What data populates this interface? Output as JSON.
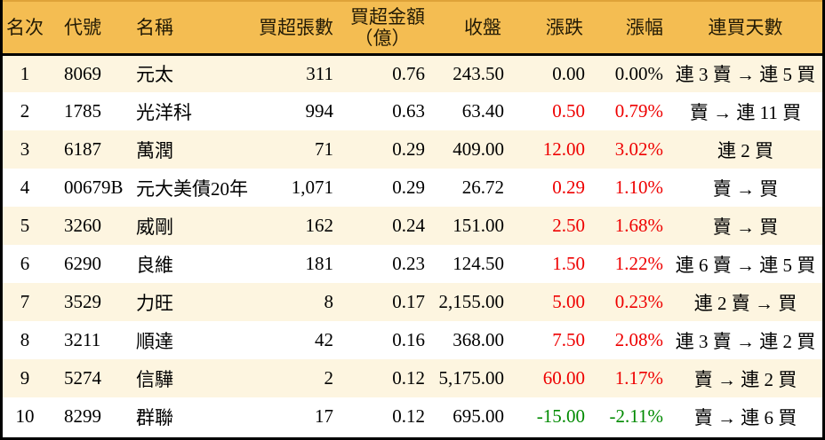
{
  "colors": {
    "header_bg": "#f4bd52",
    "header_top_edge": "#dfa339",
    "stripe_bg": "#fdf5e0",
    "up": "#ee0000",
    "down": "#008a00",
    "flat": "#000000",
    "border": "#000000"
  },
  "chart_data": {
    "type": "table",
    "title": "",
    "columns": [
      {
        "key": "rank",
        "label": "名次"
      },
      {
        "key": "code",
        "label": "代號"
      },
      {
        "key": "name",
        "label": "名稱"
      },
      {
        "key": "shares",
        "label": "買超張數"
      },
      {
        "key": "amount",
        "label": "買超金額",
        "sub": "（億）"
      },
      {
        "key": "close",
        "label": "收盤"
      },
      {
        "key": "change",
        "label": "漲跌"
      },
      {
        "key": "pct",
        "label": "漲幅"
      },
      {
        "key": "streak",
        "label": "連買天數"
      }
    ],
    "rows": [
      {
        "rank": "1",
        "code": "8069",
        "name": "元太",
        "shares": "311",
        "amount": "0.76",
        "close": "243.50",
        "change": "0.00",
        "pct": "0.00%",
        "streak": "連 3 賣 → 連 5 買",
        "trend": "flat"
      },
      {
        "rank": "2",
        "code": "1785",
        "name": "光洋科",
        "shares": "994",
        "amount": "0.63",
        "close": "63.40",
        "change": "0.50",
        "pct": "0.79%",
        "streak": "賣 → 連 11 買",
        "trend": "up"
      },
      {
        "rank": "3",
        "code": "6187",
        "name": "萬潤",
        "shares": "71",
        "amount": "0.29",
        "close": "409.00",
        "change": "12.00",
        "pct": "3.02%",
        "streak": "連 2 買",
        "trend": "up"
      },
      {
        "rank": "4",
        "code": "00679B",
        "name": "元大美債20年",
        "shares": "1,071",
        "amount": "0.29",
        "close": "26.72",
        "change": "0.29",
        "pct": "1.10%",
        "streak": "賣 → 買",
        "trend": "up"
      },
      {
        "rank": "5",
        "code": "3260",
        "name": "威剛",
        "shares": "162",
        "amount": "0.24",
        "close": "151.00",
        "change": "2.50",
        "pct": "1.68%",
        "streak": "賣 → 買",
        "trend": "up"
      },
      {
        "rank": "6",
        "code": "6290",
        "name": "良維",
        "shares": "181",
        "amount": "0.23",
        "close": "124.50",
        "change": "1.50",
        "pct": "1.22%",
        "streak": "連 6 賣 → 連 5 買",
        "trend": "up"
      },
      {
        "rank": "7",
        "code": "3529",
        "name": "力旺",
        "shares": "8",
        "amount": "0.17",
        "close": "2,155.00",
        "change": "5.00",
        "pct": "0.23%",
        "streak": "連 2 賣 → 買",
        "trend": "up"
      },
      {
        "rank": "8",
        "code": "3211",
        "name": "順達",
        "shares": "42",
        "amount": "0.16",
        "close": "368.00",
        "change": "7.50",
        "pct": "2.08%",
        "streak": "連 3 賣 → 連 2 買",
        "trend": "up"
      },
      {
        "rank": "9",
        "code": "5274",
        "name": "信驊",
        "shares": "2",
        "amount": "0.12",
        "close": "5,175.00",
        "change": "60.00",
        "pct": "1.17%",
        "streak": "賣 → 連 2 買",
        "trend": "up"
      },
      {
        "rank": "10",
        "code": "8299",
        "name": "群聯",
        "shares": "17",
        "amount": "0.12",
        "close": "695.00",
        "change": "-15.00",
        "pct": "-2.11%",
        "streak": "賣 → 連 6 買",
        "trend": "down"
      }
    ]
  }
}
